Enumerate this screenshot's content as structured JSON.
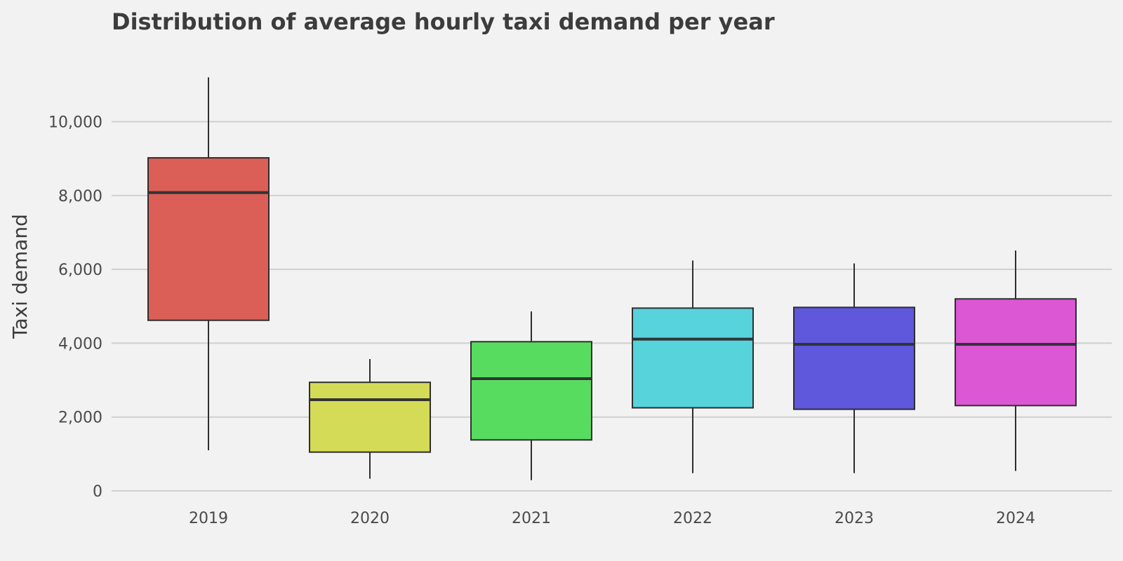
{
  "chart_data": {
    "type": "box",
    "title": "Distribution of average hourly taxi demand per year",
    "ylabel": "Taxi demand",
    "xlabel": "",
    "ylim": [
      0,
      11000
    ],
    "yticks": [
      0,
      2000,
      4000,
      6000,
      8000,
      10000
    ],
    "ytick_labels": [
      "0",
      "2,000",
      "4,000",
      "6,000",
      "8,000",
      "10,000"
    ],
    "grid": true,
    "categories": [
      "2019",
      "2020",
      "2021",
      "2022",
      "2023",
      "2024"
    ],
    "boxes": [
      {
        "category": "2019",
        "whisker_low": 1100,
        "q1": 4620,
        "median": 8080,
        "q3": 9020,
        "whisker_high": 11200,
        "color": "#dc5f57"
      },
      {
        "category": "2020",
        "whisker_low": 330,
        "q1": 1050,
        "median": 2470,
        "q3": 2940,
        "whisker_high": 3570,
        "color": "#d4dc57"
      },
      {
        "category": "2021",
        "whisker_low": 290,
        "q1": 1380,
        "median": 3040,
        "q3": 4040,
        "whisker_high": 4860,
        "color": "#57dc5f"
      },
      {
        "category": "2022",
        "whisker_low": 480,
        "q1": 2250,
        "median": 4110,
        "q3": 4950,
        "whisker_high": 6240,
        "color": "#57d3dc"
      },
      {
        "category": "2023",
        "whisker_low": 480,
        "q1": 2210,
        "median": 3970,
        "q3": 4970,
        "whisker_high": 6160,
        "color": "#5f57dc"
      },
      {
        "category": "2024",
        "whisker_low": 540,
        "q1": 2310,
        "median": 3970,
        "q3": 5200,
        "whisker_high": 6510,
        "color": "#dc57d4"
      }
    ]
  }
}
